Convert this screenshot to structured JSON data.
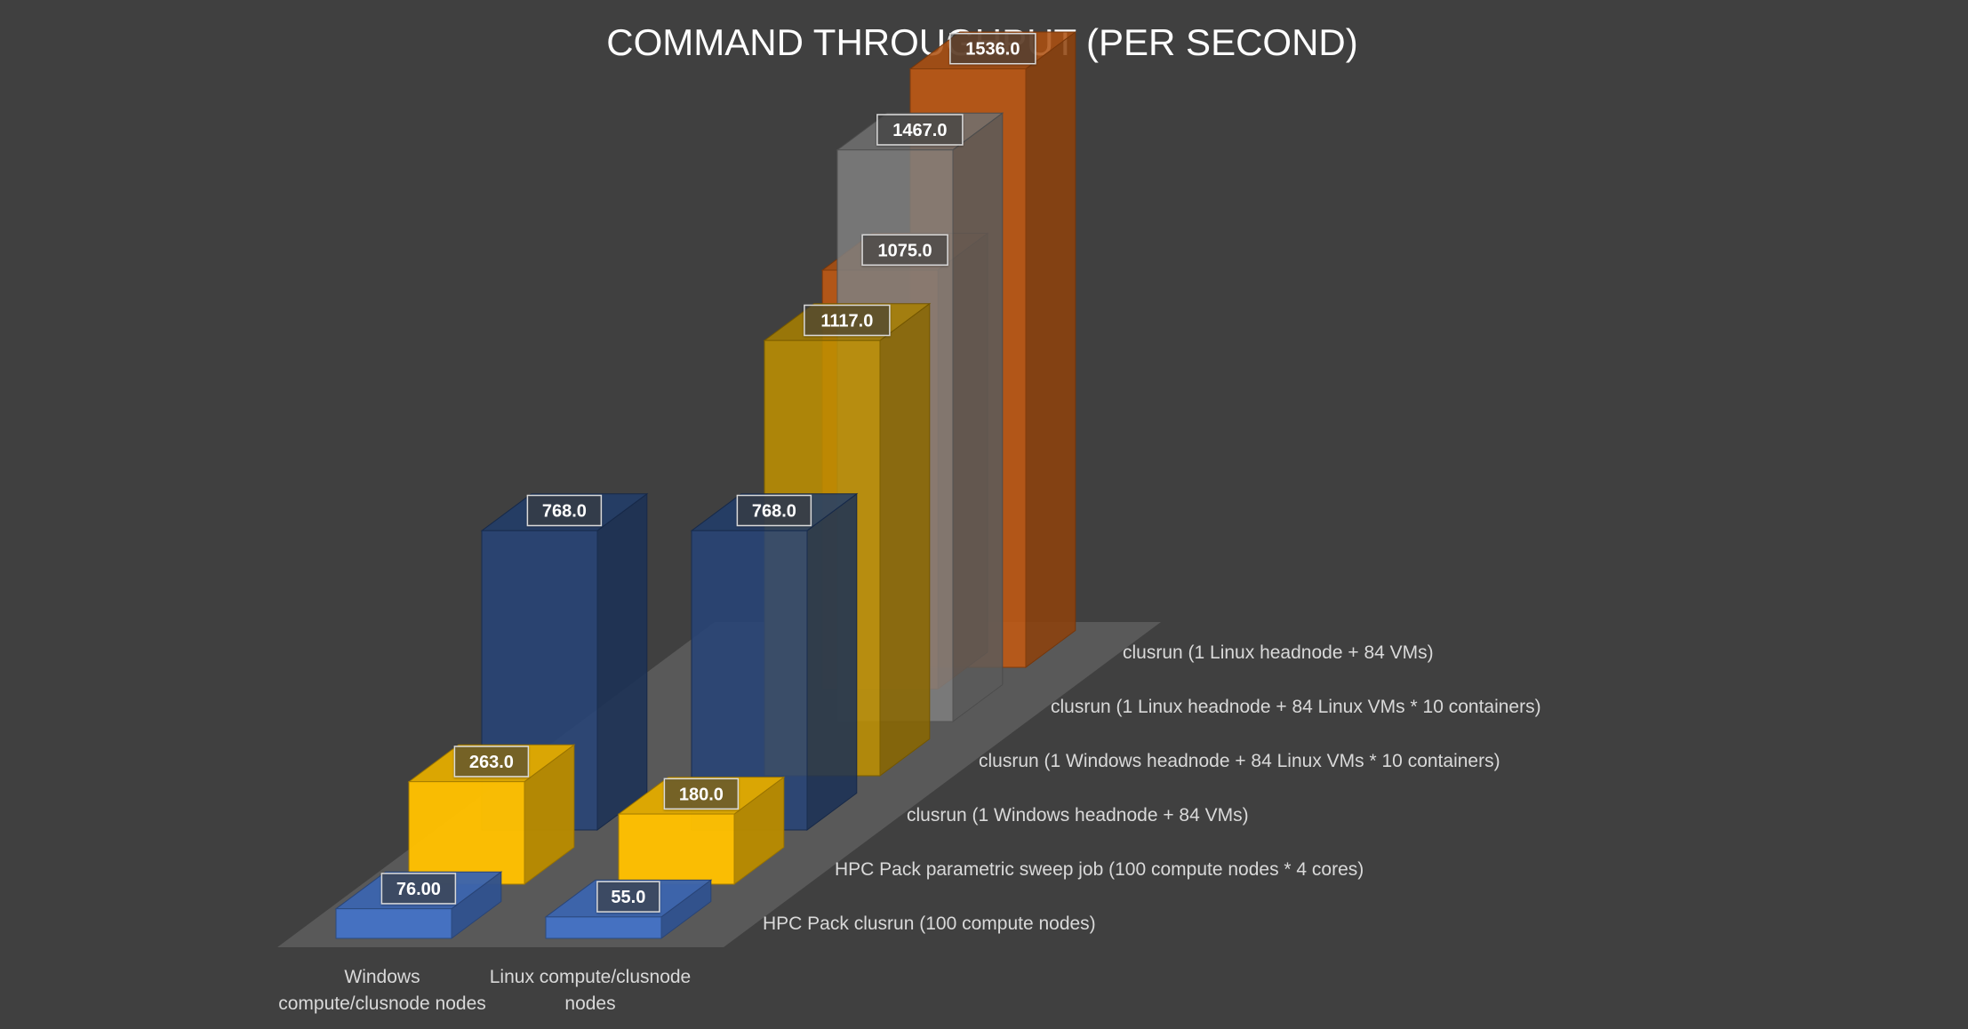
{
  "chart_data": {
    "type": "bar",
    "style": "3d-column",
    "title": "COMMAND THROUGHPUT (PER SECOND)",
    "categories": [
      "Windows compute/clusnode nodes",
      "Linux compute/clusnode nodes"
    ],
    "category_lines": [
      [
        "Windows",
        "compute/clusnode nodes"
      ],
      [
        "Linux compute/clusnode",
        "nodes"
      ]
    ],
    "series": [
      {
        "name": "HPC Pack clusrun (100 compute nodes)",
        "values": [
          76.0,
          55.0
        ],
        "labels": [
          "76.00",
          "55.0"
        ],
        "color": "#4472C4"
      },
      {
        "name": "HPC Pack parametric sweep job (100 compute nodes * 4 cores)",
        "values": [
          263.0,
          180.0
        ],
        "labels": [
          "263.0",
          "180.0"
        ],
        "color": "#FFC000"
      },
      {
        "name": "clusrun (1 Windows headnode + 84 VMs)",
        "values": [
          768.0,
          768.0
        ],
        "labels": [
          "768.0",
          "768.0"
        ],
        "color": "#264478"
      },
      {
        "name": "clusrun (1 Windows headnode + 84 Linux VMs * 10 containers)",
        "values": [
          null,
          1117.0
        ],
        "labels": [
          null,
          "1117.0"
        ],
        "color": "#BF9000"
      },
      {
        "name": "clusrun (1 Linux headnode + 84 Linux VMs * 10 containers)",
        "values": [
          null,
          1467.0
        ],
        "labels": [
          null,
          "1467.0"
        ],
        "color": "#7F7F7F"
      },
      {
        "name": "clusrun (1 Linux headnode + 84 VMs)",
        "values": [
          null,
          1536.0
        ],
        "labels": [
          null,
          "1536.0"
        ],
        "color": "#C55A11"
      },
      {
        "name": "clusrun (1 Linux headnode + 84 VMs)",
        "values": [
          null,
          1075.0
        ],
        "labels": [
          null,
          "1075.0"
        ],
        "color": "#C55A11"
      }
    ],
    "ylabel": "",
    "xlabel": "",
    "ylim": [
      0,
      1600
    ],
    "grid": false,
    "legend": "none"
  }
}
